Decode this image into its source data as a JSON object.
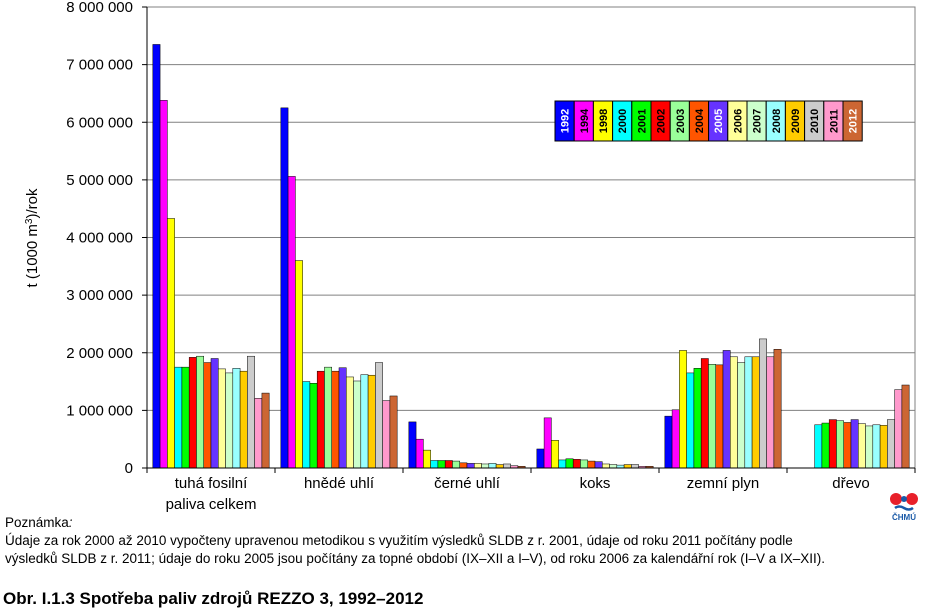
{
  "chart_data": {
    "type": "bar",
    "ylabel_parts": [
      "t (1000 m",
      "3",
      ")/rok"
    ],
    "ylim": [
      0,
      8000000
    ],
    "yticks": [
      0,
      1000000,
      2000000,
      3000000,
      4000000,
      5000000,
      6000000,
      7000000,
      8000000
    ],
    "ytick_labels": [
      "0",
      "1 000 000",
      "2 000 000",
      "3 000 000",
      "4 000 000",
      "5 000 000",
      "6 000 000",
      "7 000 000",
      "8 000 000"
    ],
    "grid": "horizontal",
    "legend_position": "upper-right, inside plot, vertical labels",
    "categories": [
      [
        "tuhá fosilní",
        "paliva celkem"
      ],
      [
        "hnědé uhlí"
      ],
      [
        "černé uhlí"
      ],
      [
        "koks"
      ],
      [
        "zemní plyn"
      ],
      [
        "dřevo"
      ]
    ],
    "series": [
      {
        "name": "1992",
        "color": "#0000ff",
        "text_color": "#ffffff",
        "values": [
          7350000,
          6250000,
          800000,
          330000,
          900000,
          null
        ]
      },
      {
        "name": "1994",
        "color": "#ff00ff",
        "text_color": "#000000",
        "values": [
          6380000,
          5060000,
          500000,
          870000,
          1010000,
          null
        ]
      },
      {
        "name": "1998",
        "color": "#ffff00",
        "text_color": "#000000",
        "values": [
          4330000,
          3600000,
          310000,
          480000,
          2040000,
          null
        ]
      },
      {
        "name": "2000",
        "color": "#00ffff",
        "text_color": "#000000",
        "values": [
          1750000,
          1500000,
          130000,
          140000,
          1650000,
          750000
        ]
      },
      {
        "name": "2001",
        "color": "#00ff00",
        "text_color": "#000000",
        "values": [
          1750000,
          1470000,
          130000,
          160000,
          1730000,
          780000
        ]
      },
      {
        "name": "2002",
        "color": "#ff0000",
        "text_color": "#000000",
        "values": [
          1920000,
          1680000,
          130000,
          150000,
          1900000,
          840000
        ]
      },
      {
        "name": "2003",
        "color": "#99ff99",
        "text_color": "#000000",
        "values": [
          1940000,
          1750000,
          120000,
          140000,
          1800000,
          820000
        ]
      },
      {
        "name": "2004",
        "color": "#ff5500",
        "text_color": "#000000",
        "values": [
          1830000,
          1680000,
          90000,
          120000,
          1790000,
          790000
        ]
      },
      {
        "name": "2005",
        "color": "#6633ff",
        "text_color": "#ffffff",
        "values": [
          1900000,
          1740000,
          80000,
          110000,
          2040000,
          840000
        ]
      },
      {
        "name": "2006",
        "color": "#ffff99",
        "text_color": "#000000",
        "values": [
          1720000,
          1580000,
          80000,
          70000,
          1930000,
          770000
        ]
      },
      {
        "name": "2007",
        "color": "#ccffcc",
        "text_color": "#000000",
        "values": [
          1650000,
          1510000,
          70000,
          60000,
          1830000,
          730000
        ]
      },
      {
        "name": "2008",
        "color": "#99ffff",
        "text_color": "#000000",
        "values": [
          1730000,
          1620000,
          80000,
          50000,
          1930000,
          750000
        ]
      },
      {
        "name": "2009",
        "color": "#ffcc00",
        "text_color": "#000000",
        "values": [
          1680000,
          1610000,
          60000,
          60000,
          1930000,
          740000
        ]
      },
      {
        "name": "2010",
        "color": "#cccccc",
        "text_color": "#000000",
        "values": [
          1940000,
          1830000,
          70000,
          60000,
          2240000,
          840000
        ]
      },
      {
        "name": "2011",
        "color": "#ff99cc",
        "text_color": "#000000",
        "values": [
          1210000,
          1170000,
          40000,
          30000,
          1930000,
          1360000
        ]
      },
      {
        "name": "2012",
        "color": "#cc6633",
        "text_color": "#ffffff",
        "values": [
          1300000,
          1250000,
          30000,
          30000,
          2060000,
          1440000
        ]
      }
    ]
  },
  "note": {
    "title": "Poznámka",
    "colon": ":",
    "line1": "Údaje za rok 2000 až 2010 vypočteny upravenou metodikou s využitím výsledků SLDB z r. 2001, údaje od roku 2011 počítány podle",
    "line2": "výsledků SLDB z r. 2011; údaje do roku 2005 jsou počítány za topné období (IX–XII a I–V), od roku 2006 za kalendářní rok (I–V a IX–XII)."
  },
  "caption": "Obr. I.1.3  Spotřeba paliv zdrojů REZZO 3, 1992–2012",
  "logo_text": "ČHMÚ"
}
